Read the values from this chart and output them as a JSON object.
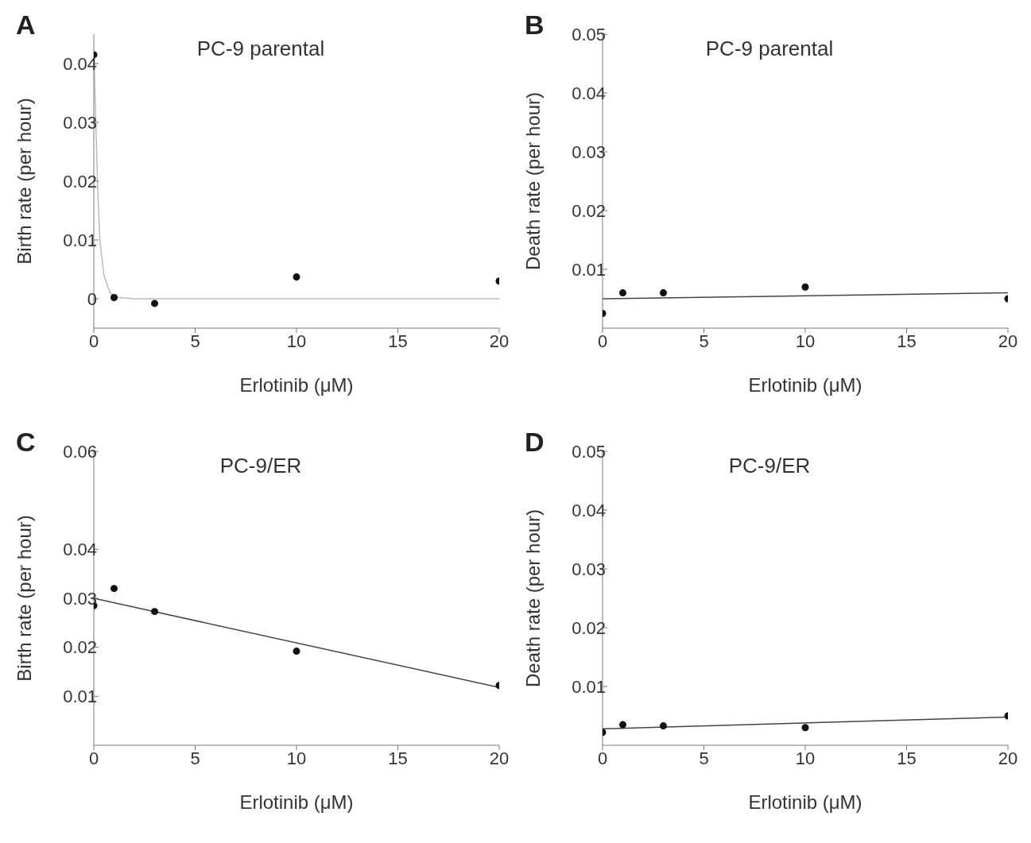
{
  "chart_data": [
    {
      "type": "scatter",
      "title": "PC-9 parental",
      "xlabel": "Erlotinib (μM)",
      "ylabel": "Birth rate (per hour)",
      "annotations": [
        "A"
      ],
      "marker": "circle",
      "xlim": [
        0,
        20
      ],
      "xticks": [
        0,
        5,
        10,
        15,
        20
      ],
      "ylim": [
        -0.005,
        0.045
      ],
      "yticks": [
        0,
        0.01,
        0.02,
        0.03,
        0.04
      ],
      "series": [
        {
          "type": "line",
          "color": "#bbbbbb",
          "marker": "none",
          "x": [
            0,
            0.1,
            0.2,
            0.3,
            0.5,
            0.8,
            1.2,
            2,
            20
          ],
          "values": [
            0.042,
            0.03,
            0.018,
            0.01,
            0.004,
            0.001,
            0.0002,
            0,
            0
          ]
        },
        {
          "color": "#111111",
          "x": [
            0,
            1,
            3,
            10,
            20
          ],
          "values": [
            0.0415,
            0.0002,
            -0.0008,
            0.0037,
            0.003
          ]
        }
      ]
    },
    {
      "type": "scatter",
      "title": "PC-9 parental",
      "xlabel": "Erlotinib (μM)",
      "ylabel": "Death rate (per hour)",
      "annotations": [
        "B"
      ],
      "marker": "circle",
      "xlim": [
        0,
        20
      ],
      "xticks": [
        0,
        5,
        10,
        15,
        20
      ],
      "ylim": [
        0,
        0.05
      ],
      "yticks": [
        0.01,
        0.02,
        0.03,
        0.04,
        0.05
      ],
      "series": [
        {
          "type": "line",
          "color": "#444444",
          "marker": "none",
          "x": [
            0,
            20
          ],
          "values": [
            0.005,
            0.006
          ]
        },
        {
          "color": "#111111",
          "x": [
            0,
            1,
            3,
            10,
            20
          ],
          "values": [
            0.0025,
            0.006,
            0.006,
            0.007,
            0.005
          ]
        }
      ]
    },
    {
      "type": "scatter",
      "title": "PC-9/ER",
      "xlabel": "Erlotinib (μM)",
      "ylabel": "Birth rate (per hour)",
      "annotations": [
        "C"
      ],
      "marker": "circle",
      "xlim": [
        0,
        20
      ],
      "xticks": [
        0,
        5,
        10,
        15,
        20
      ],
      "ylim": [
        0,
        0.06
      ],
      "yticks": [
        0.01,
        0.02,
        0.03,
        0.04,
        0.06
      ],
      "series": [
        {
          "type": "line",
          "color": "#444444",
          "marker": "none",
          "x": [
            0,
            20
          ],
          "values": [
            0.03,
            0.0118
          ]
        },
        {
          "color": "#111111",
          "x": [
            0,
            1,
            3,
            10,
            20
          ],
          "values": [
            0.0285,
            0.032,
            0.0273,
            0.0192,
            0.0122
          ]
        }
      ]
    },
    {
      "type": "scatter",
      "title": "PC-9/ER",
      "xlabel": "Erlotinib (μM)",
      "ylabel": "Death rate (per hour)",
      "annotations": [
        "D"
      ],
      "marker": "circle",
      "xlim": [
        0,
        20
      ],
      "xticks": [
        0,
        5,
        10,
        15,
        20
      ],
      "ylim": [
        0,
        0.05
      ],
      "yticks": [
        0.01,
        0.02,
        0.03,
        0.04,
        0.05
      ],
      "series": [
        {
          "type": "line",
          "color": "#444444",
          "marker": "none",
          "x": [
            0,
            20
          ],
          "values": [
            0.0028,
            0.0048
          ]
        },
        {
          "color": "#111111",
          "x": [
            0,
            1,
            3,
            10,
            20
          ],
          "values": [
            0.0022,
            0.0035,
            0.0033,
            0.003,
            0.005
          ]
        }
      ]
    }
  ]
}
